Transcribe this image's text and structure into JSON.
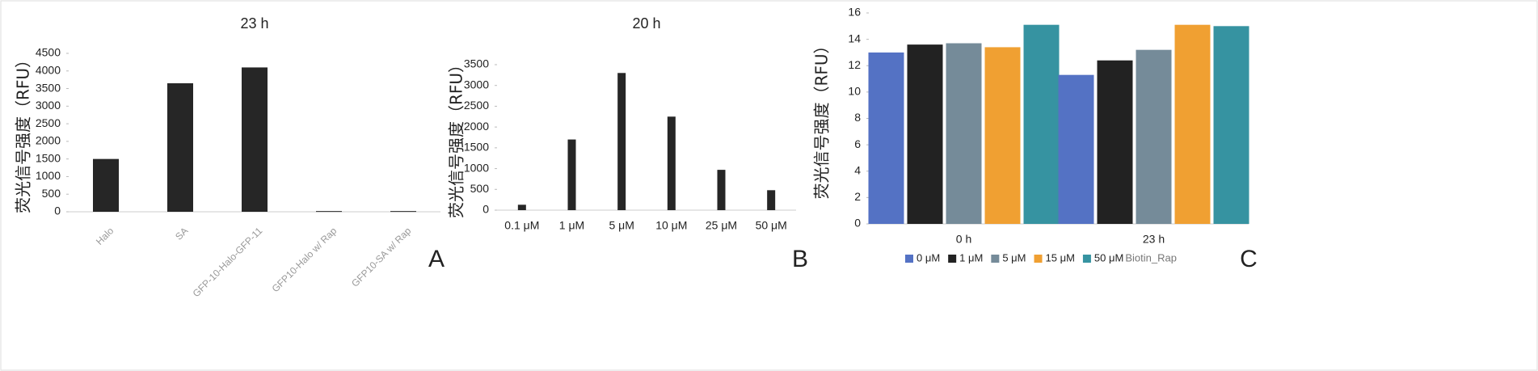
{
  "chart_data": [
    {
      "type": "bar",
      "title": "23 h",
      "y_label": "荧光信号强度（RFU）",
      "panel_label": "A",
      "categories": [
        "Halo",
        "SA",
        "GFP-10-Halo-GFP-11",
        "GFP10-Halo w/ Rap",
        "GFP10-SA w/ Rap"
      ],
      "values": [
        1500,
        3650,
        4100,
        20,
        20
      ],
      "color": "#262626",
      "ylim": [
        0,
        4500
      ],
      "yticks": [
        0,
        500,
        1000,
        1500,
        2000,
        2500,
        3000,
        3500,
        4000,
        4500
      ]
    },
    {
      "type": "bar",
      "title": "20 h",
      "y_label": "荧光信号强度（RFU）",
      "panel_label": "B",
      "categories": [
        "0.1 μM",
        "1 μM",
        "5 μM",
        "10 μM",
        "25 μM",
        "50 μM"
      ],
      "values": [
        130,
        1700,
        3300,
        2250,
        970,
        480
      ],
      "color": "#262626",
      "ylim": [
        0,
        3500
      ],
      "yticks": [
        0,
        500,
        1000,
        1500,
        2000,
        2500,
        3000,
        3500
      ]
    },
    {
      "type": "bar",
      "y_label": "荧光信号强度（RFU）",
      "panel_label": "C",
      "categories": [
        "0 h",
        "23 h"
      ],
      "legend_title": "Biotin_Rap",
      "series": [
        {
          "name": "0 μM",
          "color": "#5472c4",
          "values": [
            13.0,
            11.3
          ]
        },
        {
          "name": "1 μM",
          "color": "#222222",
          "values": [
            13.6,
            12.4
          ]
        },
        {
          "name": "5 μM",
          "color": "#758b99",
          "values": [
            13.7,
            13.2
          ]
        },
        {
          "name": "15 μM",
          "color": "#f0a032",
          "values": [
            13.4,
            15.1
          ]
        },
        {
          "name": "50 μM",
          "color": "#3693a1",
          "values": [
            15.1,
            15.0
          ]
        }
      ],
      "ylim": [
        0,
        16
      ],
      "yticks": [
        0,
        2,
        4,
        6,
        8,
        10,
        12,
        14,
        16
      ]
    }
  ]
}
